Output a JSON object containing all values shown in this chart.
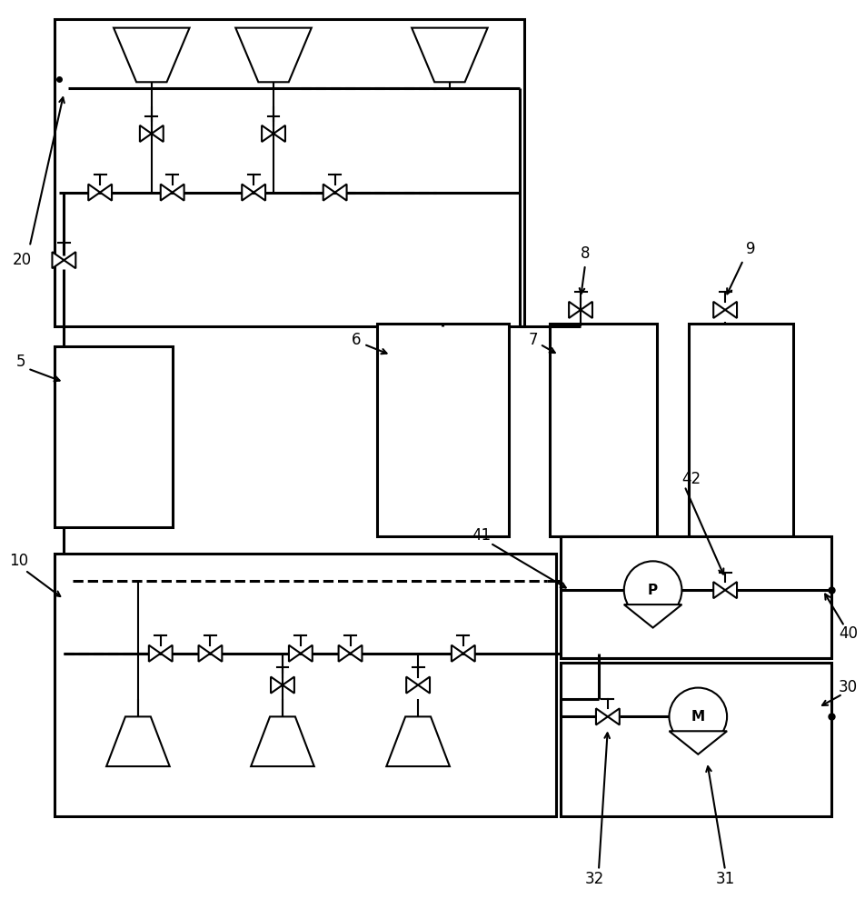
{
  "bg_color": "#ffffff",
  "lw": 1.5,
  "lw2": 2.2,
  "fig_width": 9.53,
  "fig_height": 10.0
}
